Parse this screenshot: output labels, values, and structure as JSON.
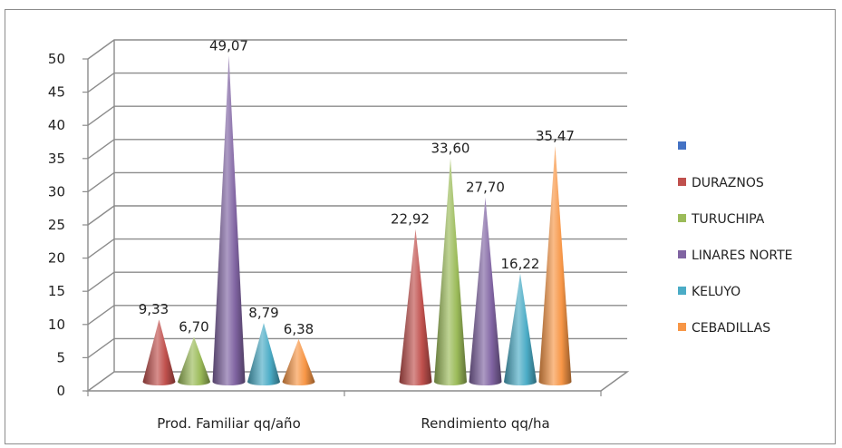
{
  "chart_data": {
    "type": "bar",
    "style": "3d-cone",
    "categories": [
      "Prod. Familiar  qq/año",
      "Rendimiento qq/ha"
    ],
    "series": [
      {
        "name": "",
        "color": "#4472c4",
        "values": [
          null,
          null
        ],
        "labels": [
          "",
          ""
        ]
      },
      {
        "name": "DURAZNOS",
        "color": "#c0504d",
        "values": [
          9.33,
          22.92
        ],
        "labels": [
          "9,33",
          "22,92"
        ]
      },
      {
        "name": "TURUCHIPA",
        "color": "#9bbb59",
        "values": [
          6.7,
          33.6
        ],
        "labels": [
          "6,70",
          "33,60"
        ]
      },
      {
        "name": "LINARES NORTE",
        "color": "#8064a2",
        "values": [
          49.07,
          27.7
        ],
        "labels": [
          "49,07",
          "27,70"
        ]
      },
      {
        "name": "KELUYO",
        "color": "#4bacc6",
        "values": [
          8.79,
          16.22
        ],
        "labels": [
          "8,79",
          "16,22"
        ]
      },
      {
        "name": "CEBADILLAS",
        "color": "#f79646",
        "values": [
          6.38,
          35.47
        ],
        "labels": [
          "6,38",
          "35,47"
        ]
      }
    ],
    "ylim": [
      0,
      50
    ],
    "yticks": [
      0,
      5,
      10,
      15,
      20,
      25,
      30,
      35,
      40,
      45,
      50
    ],
    "grid": true,
    "legend": "right"
  }
}
